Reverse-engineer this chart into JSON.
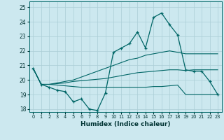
{
  "xlabel": "Humidex (Indice chaleur)",
  "bg_color": "#cce8ef",
  "grid_color": "#aacdd6",
  "line_color": "#006666",
  "xlim": [
    -0.5,
    23.5
  ],
  "ylim": [
    17.8,
    25.4
  ],
  "yticks": [
    18,
    19,
    20,
    21,
    22,
    23,
    24,
    25
  ],
  "xticks": [
    0,
    1,
    2,
    3,
    4,
    5,
    6,
    7,
    8,
    9,
    10,
    11,
    12,
    13,
    14,
    15,
    16,
    17,
    18,
    19,
    20,
    21,
    22,
    23
  ],
  "main_line": [
    20.8,
    19.7,
    19.5,
    19.3,
    19.2,
    18.5,
    18.7,
    18.0,
    17.9,
    19.1,
    21.9,
    22.2,
    22.5,
    23.3,
    22.2,
    24.3,
    24.6,
    23.8,
    23.1,
    20.7,
    20.6,
    20.6,
    19.9,
    19.0
  ],
  "line_upper": [
    20.8,
    19.7,
    19.7,
    19.8,
    19.9,
    20.0,
    20.2,
    20.4,
    20.6,
    20.8,
    21.0,
    21.2,
    21.4,
    21.5,
    21.7,
    21.8,
    21.9,
    22.0,
    21.9,
    21.8,
    21.8,
    21.8,
    21.8,
    21.8
  ],
  "line_mid": [
    20.8,
    19.7,
    19.7,
    19.75,
    19.8,
    19.9,
    19.95,
    20.0,
    20.05,
    20.1,
    20.2,
    20.3,
    20.4,
    20.5,
    20.55,
    20.6,
    20.65,
    20.7,
    20.7,
    20.65,
    20.7,
    20.7,
    20.7,
    20.7
  ],
  "line_lower": [
    20.8,
    19.7,
    19.7,
    19.65,
    19.6,
    19.55,
    19.5,
    19.5,
    19.5,
    19.5,
    19.5,
    19.5,
    19.5,
    19.5,
    19.5,
    19.55,
    19.55,
    19.6,
    19.65,
    19.0,
    19.0,
    19.0,
    19.0,
    19.0
  ]
}
